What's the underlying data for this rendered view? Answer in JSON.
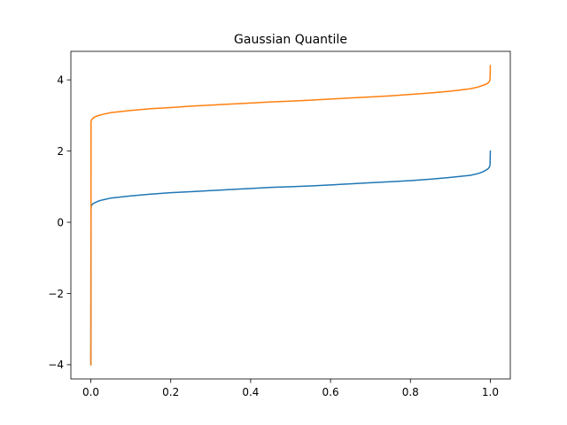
{
  "chart_data": {
    "type": "line",
    "title": "Gaussian Quantile",
    "xlabel": "",
    "ylabel": "",
    "xlim": [
      -0.05,
      1.05
    ],
    "ylim": [
      -4.4,
      4.8
    ],
    "xticks": [
      0.0,
      0.2,
      0.4,
      0.6,
      0.8,
      1.0
    ],
    "xtick_labels": [
      "0.0",
      "0.2",
      "0.4",
      "0.6",
      "0.8",
      "1.0"
    ],
    "yticks": [
      -4,
      -2,
      0,
      2,
      4
    ],
    "ytick_labels": [
      "−4",
      "−2",
      "0",
      "2",
      "4"
    ],
    "grid": false,
    "legend": false,
    "series": [
      {
        "color": "#1f77b4",
        "x": [
          0.0,
          0.0005,
          0.001,
          0.002,
          0.005,
          0.01,
          0.02,
          0.03,
          0.05,
          0.1,
          0.15,
          0.2,
          0.25,
          0.3,
          0.35,
          0.4,
          0.45,
          0.5,
          0.55,
          0.6,
          0.65,
          0.7,
          0.75,
          0.8,
          0.85,
          0.9,
          0.95,
          0.97,
          0.98,
          0.99,
          0.995,
          0.998,
          0.999,
          0.9995,
          1.0
        ],
        "values": [
          -4.0,
          0.4,
          0.45,
          0.48,
          0.52,
          0.55,
          0.6,
          0.63,
          0.68,
          0.74,
          0.79,
          0.83,
          0.86,
          0.89,
          0.92,
          0.95,
          0.98,
          1.0,
          1.02,
          1.05,
          1.08,
          1.11,
          1.14,
          1.17,
          1.21,
          1.26,
          1.32,
          1.37,
          1.41,
          1.47,
          1.51,
          1.56,
          1.6,
          1.65,
          2.0
        ]
      },
      {
        "color": "#ff7f0e",
        "x": [
          0.0,
          0.0005,
          0.001,
          0.002,
          0.005,
          0.01,
          0.02,
          0.03,
          0.05,
          0.1,
          0.15,
          0.2,
          0.25,
          0.3,
          0.35,
          0.4,
          0.45,
          0.5,
          0.55,
          0.6,
          0.65,
          0.7,
          0.75,
          0.8,
          0.85,
          0.9,
          0.95,
          0.97,
          0.98,
          0.99,
          0.995,
          0.998,
          0.999,
          0.9995,
          1.0
        ],
        "values": [
          -4.0,
          2.8,
          2.85,
          2.88,
          2.92,
          2.96,
          3.0,
          3.03,
          3.08,
          3.14,
          3.19,
          3.22,
          3.26,
          3.29,
          3.32,
          3.35,
          3.38,
          3.4,
          3.43,
          3.46,
          3.49,
          3.52,
          3.55,
          3.59,
          3.63,
          3.68,
          3.75,
          3.8,
          3.84,
          3.88,
          3.92,
          3.96,
          4.0,
          4.1,
          4.4
        ]
      }
    ]
  }
}
